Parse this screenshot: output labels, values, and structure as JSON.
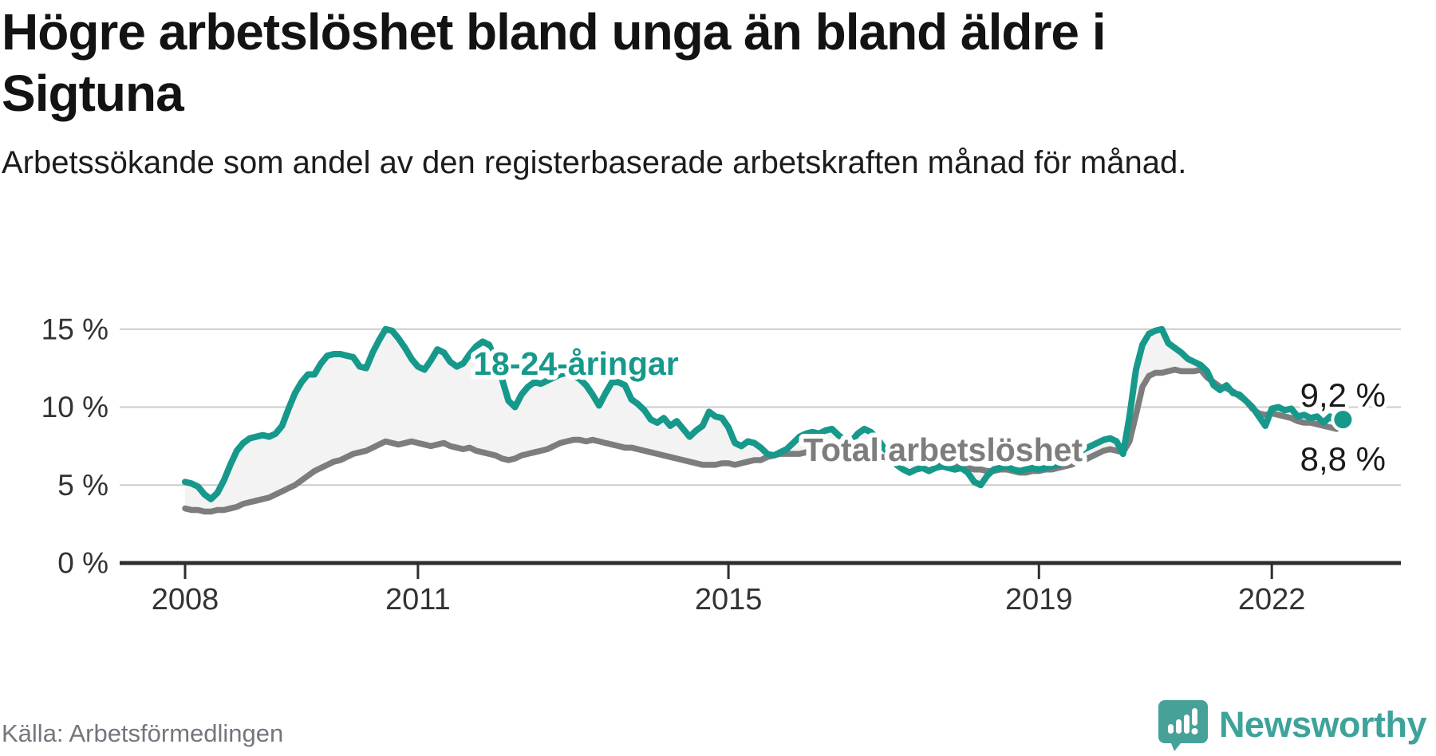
{
  "header": {
    "title": "Högre arbetslöshet bland unga än bland äldre i Sigtuna",
    "subtitle": "Arbetssökande som andel av den registerbaserade arbetskraften månad för månad."
  },
  "footer": {
    "source": "Källa: Arbetsförmedlingen",
    "brand": "Newsworthy"
  },
  "theme": {
    "accent_teal": "#16998b",
    "line_gray": "#7d7d7d",
    "fill_between": "#f3f3f3",
    "grid": "#cccccc",
    "axis": "#2e2e2e",
    "tick_label": "#333333",
    "annotation": "#1a1a1a",
    "label_halo": "#ffffff"
  },
  "chart_data": {
    "type": "line",
    "title": "Högre arbetslöshet bland unga än bland äldre i Sigtuna",
    "unit": "%",
    "x_start": "2008-01",
    "x_end": "2022-12",
    "frequency": "monthly",
    "ylim": [
      0,
      15.5
    ],
    "grid": "horizontal",
    "y_ticks": [
      {
        "value": 15,
        "label": "15 %"
      },
      {
        "value": 10,
        "label": "10 %"
      },
      {
        "value": 5,
        "label": "5 %"
      },
      {
        "value": 0,
        "label": "0 %"
      }
    ],
    "x_ticks": [
      {
        "year": 2008,
        "label": "2008"
      },
      {
        "year": 2011,
        "label": "2011"
      },
      {
        "year": 2015,
        "label": "2015"
      },
      {
        "year": 2019,
        "label": "2019"
      },
      {
        "year": 2022,
        "label": "2022"
      }
    ],
    "series": [
      {
        "id": "youth",
        "label": "18-24-åringar",
        "color": "#16998b",
        "end_value_label": "9,2 %",
        "values": [
          5.2,
          5.1,
          4.9,
          4.4,
          4.1,
          4.5,
          5.3,
          6.3,
          7.2,
          7.7,
          8.0,
          8.1,
          8.2,
          8.1,
          8.3,
          8.8,
          9.9,
          10.9,
          11.6,
          12.1,
          12.1,
          12.8,
          13.3,
          13.4,
          13.4,
          13.3,
          13.2,
          12.6,
          12.5,
          13.5,
          14.3,
          15.0,
          14.9,
          14.4,
          13.8,
          13.1,
          12.6,
          12.4,
          13.0,
          13.7,
          13.5,
          12.9,
          12.6,
          12.8,
          13.4,
          13.9,
          14.2,
          14.0,
          13.0,
          11.8,
          10.4,
          10.0,
          10.8,
          11.3,
          11.6,
          11.5,
          11.7,
          11.9,
          12.1,
          12.2,
          12.0,
          11.8,
          11.4,
          10.8,
          10.1,
          10.9,
          11.6,
          11.6,
          11.4,
          10.5,
          10.2,
          9.8,
          9.2,
          9.0,
          9.3,
          8.8,
          9.1,
          8.6,
          8.1,
          8.5,
          8.8,
          9.7,
          9.4,
          9.3,
          8.7,
          7.7,
          7.5,
          7.8,
          7.7,
          7.4,
          7.0,
          6.9,
          7.1,
          7.3,
          7.7,
          8.1,
          8.3,
          8.4,
          8.3,
          8.5,
          8.6,
          8.2,
          7.9,
          7.8,
          8.3,
          8.6,
          8.4,
          8.0,
          7.4,
          6.9,
          6.3,
          6.0,
          5.8,
          6.0,
          6.1,
          5.9,
          6.1,
          6.2,
          6.1,
          6.0,
          6.1,
          5.8,
          5.2,
          5.0,
          5.6,
          6.0,
          6.1,
          6.2,
          6.0,
          5.9,
          6.0,
          6.1,
          6.0,
          6.1,
          6.2,
          6.3,
          6.5,
          6.8,
          7.0,
          7.3,
          7.5,
          7.7,
          7.9,
          8.0,
          7.8,
          7.0,
          9.4,
          12.4,
          14.0,
          14.7,
          14.9,
          15.0,
          14.1,
          13.8,
          13.5,
          13.1,
          12.9,
          12.7,
          12.3,
          11.4,
          11.1,
          11.4,
          10.9,
          10.8,
          10.4,
          10.0,
          9.4,
          8.8,
          9.9,
          10.0,
          9.8,
          9.9,
          9.4,
          9.5,
          9.3,
          9.4,
          9.0,
          9.4,
          9.0,
          9.2
        ]
      },
      {
        "id": "total",
        "label": "Total arbetslöshet",
        "color": "#7d7d7d",
        "end_value_label": "8,8 %",
        "values": [
          3.5,
          3.4,
          3.4,
          3.3,
          3.3,
          3.4,
          3.4,
          3.5,
          3.6,
          3.8,
          3.9,
          4.0,
          4.1,
          4.2,
          4.4,
          4.6,
          4.8,
          5.0,
          5.3,
          5.6,
          5.9,
          6.1,
          6.3,
          6.5,
          6.6,
          6.8,
          7.0,
          7.1,
          7.2,
          7.4,
          7.6,
          7.8,
          7.7,
          7.6,
          7.7,
          7.8,
          7.7,
          7.6,
          7.5,
          7.6,
          7.7,
          7.5,
          7.4,
          7.3,
          7.4,
          7.2,
          7.1,
          7.0,
          6.9,
          6.7,
          6.6,
          6.7,
          6.9,
          7.0,
          7.1,
          7.2,
          7.3,
          7.5,
          7.7,
          7.8,
          7.9,
          7.9,
          7.8,
          7.9,
          7.8,
          7.7,
          7.6,
          7.5,
          7.4,
          7.4,
          7.3,
          7.2,
          7.1,
          7.0,
          6.9,
          6.8,
          6.7,
          6.6,
          6.5,
          6.4,
          6.3,
          6.3,
          6.3,
          6.4,
          6.4,
          6.3,
          6.4,
          6.5,
          6.6,
          6.6,
          6.8,
          6.9,
          7.0,
          7.0,
          7.0,
          7.0,
          7.1,
          7.2,
          7.2,
          7.1,
          7.0,
          7.0,
          6.9,
          7.0,
          7.1,
          7.0,
          6.9,
          6.8,
          6.8,
          6.7,
          6.7,
          6.6,
          6.5,
          6.6,
          6.6,
          6.5,
          6.4,
          6.4,
          6.3,
          6.3,
          6.2,
          6.1,
          6.0,
          6.0,
          5.9,
          5.9,
          6.0,
          6.0,
          5.9,
          5.8,
          5.8,
          5.9,
          5.9,
          6.0,
          6.0,
          6.1,
          6.2,
          6.3,
          6.5,
          6.6,
          6.8,
          7.0,
          7.2,
          7.3,
          7.2,
          7.1,
          7.8,
          9.5,
          11.3,
          12.0,
          12.2,
          12.2,
          12.3,
          12.4,
          12.3,
          12.3,
          12.3,
          12.4,
          11.9,
          11.6,
          11.3,
          11.2,
          11.0,
          10.7,
          10.4,
          9.9,
          9.6,
          9.5,
          9.6,
          9.5,
          9.4,
          9.3,
          9.1,
          9.0,
          9.0,
          8.9,
          8.8,
          8.7,
          8.6,
          8.8
        ]
      }
    ],
    "annotations": [
      {
        "series": "youth",
        "text": "9,2 %"
      },
      {
        "series": "total",
        "text": "8,8 %"
      }
    ],
    "legend_position": "inline-labels"
  }
}
